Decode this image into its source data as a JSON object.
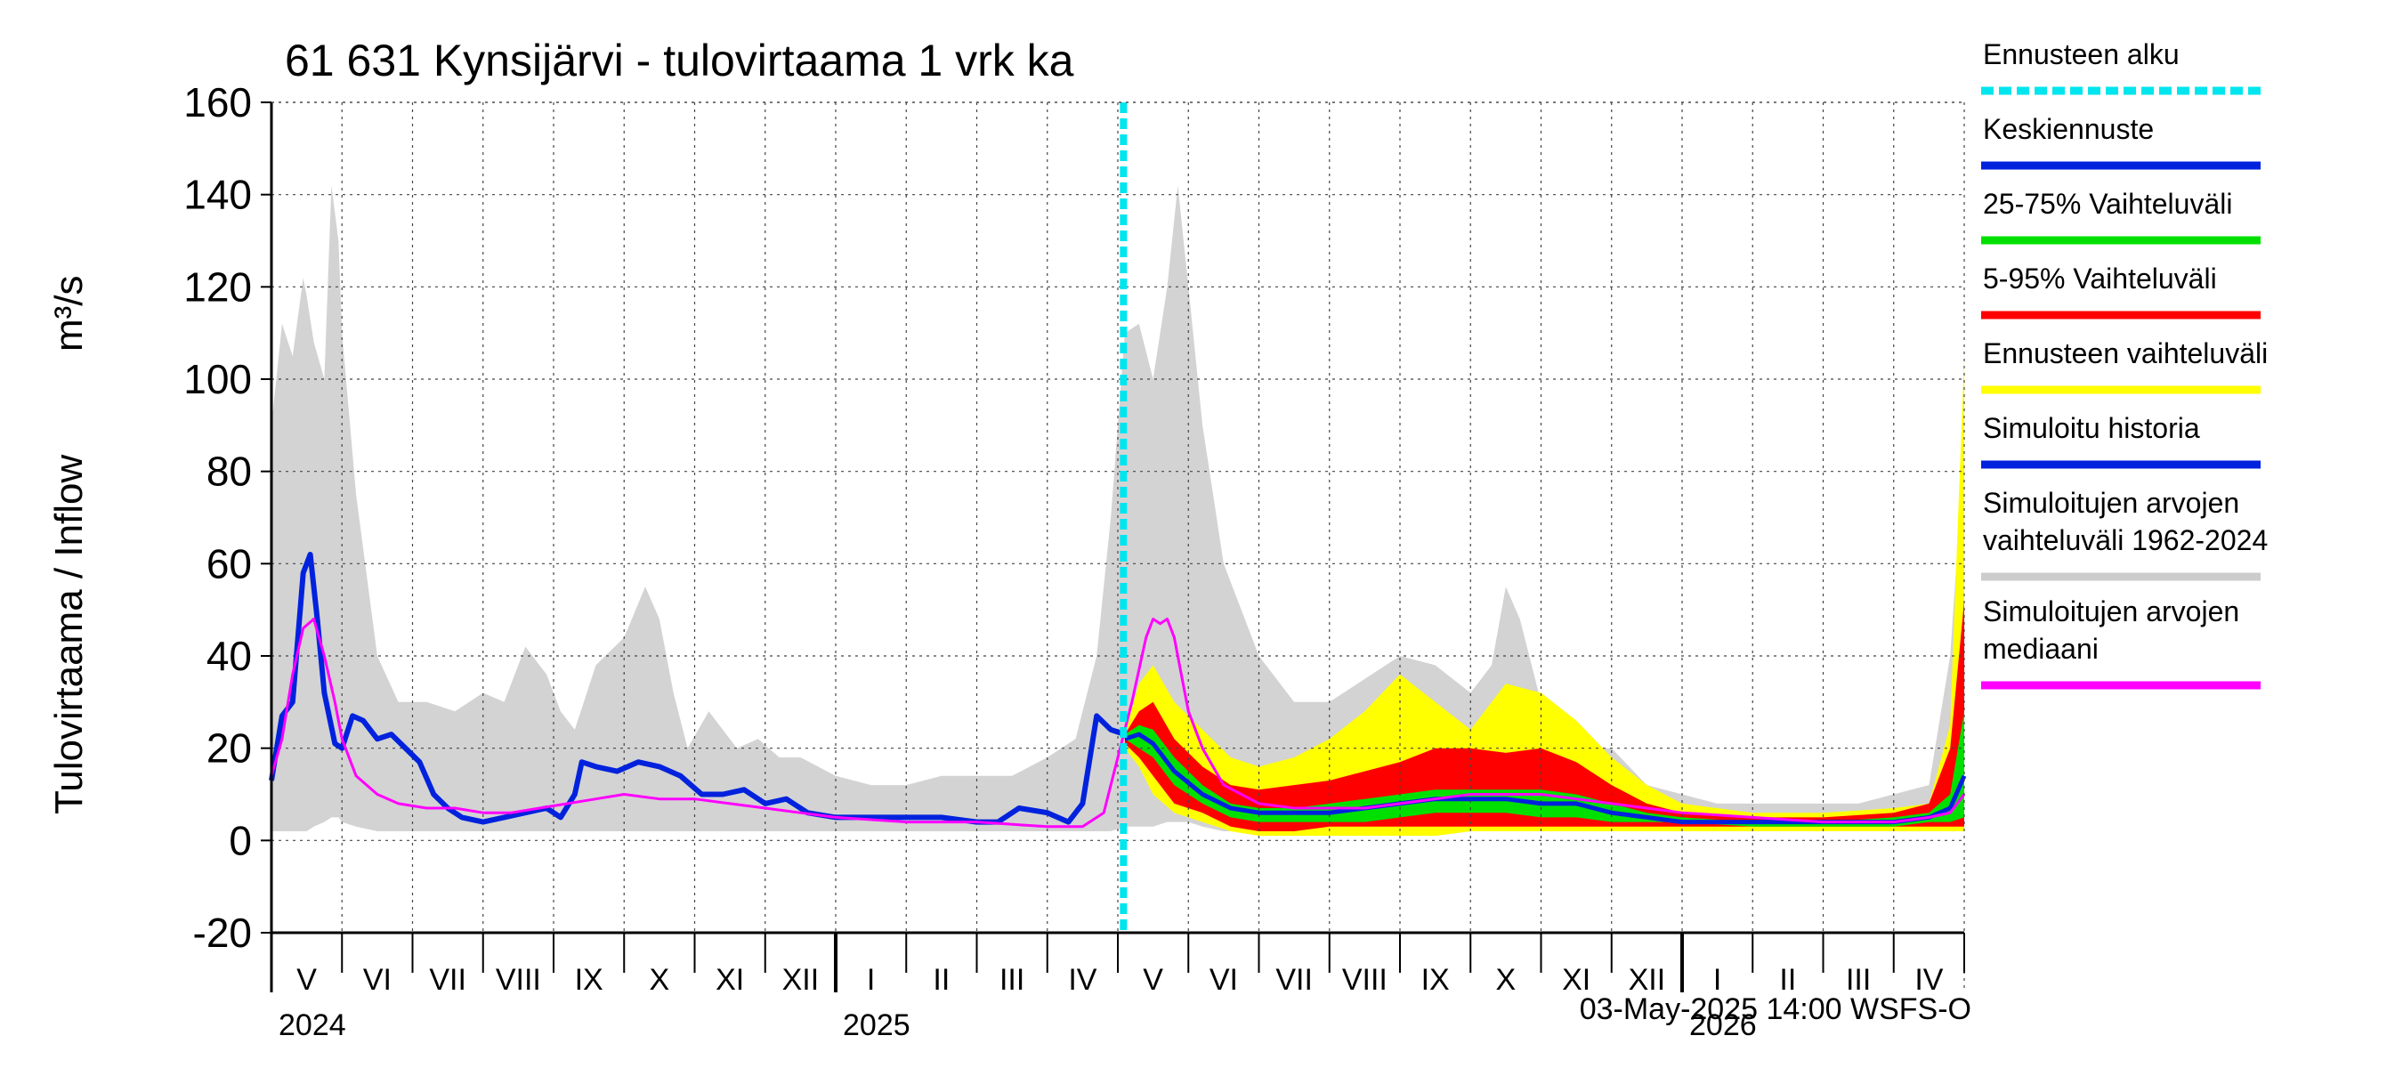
{
  "chart_data": {
    "type": "area",
    "title": "61 631 Kynsijärvi - tulovirtaama 1 vrk ka",
    "ylabel": "Tulovirtaama / Inflow",
    "yunit": "m³/s",
    "ylim": [
      -20,
      160
    ],
    "yticks": [
      -20,
      0,
      20,
      40,
      60,
      80,
      100,
      120,
      140,
      160
    ],
    "x_range_months": [
      0,
      24
    ],
    "x_start_note": "month index 0 = start of May 2024",
    "forecast_start": 12.08,
    "grid": true,
    "month_labels": [
      "V",
      "VI",
      "VII",
      "VIII",
      "IX",
      "X",
      "XI",
      "XII",
      "I",
      "II",
      "III",
      "IV",
      "V",
      "VI",
      "VII",
      "VIII",
      "IX",
      "X",
      "XI",
      "XII",
      "I",
      "II",
      "III",
      "IV"
    ],
    "year_labels": [
      {
        "label": "2024",
        "month": 0
      },
      {
        "label": "2025",
        "month": 8
      },
      {
        "label": "2026",
        "month": 20
      }
    ],
    "footer": "03-May-2025 14:00 WSFS-O",
    "legend": [
      {
        "label": "Ennusteen alku",
        "color": "#00e5ee",
        "style": "dashed"
      },
      {
        "label": "Keskiennuste",
        "color": "#0022dd",
        "style": "line"
      },
      {
        "label": "25-75% Vaihteluväli",
        "color": "#00e000",
        "style": "line"
      },
      {
        "label": "5-95% Vaihteluväli",
        "color": "#ff0000",
        "style": "line"
      },
      {
        "label": "Ennusteen vaihteluväli",
        "color": "#ffff00",
        "style": "line"
      },
      {
        "label": "Simuloitu historia",
        "color": "#0022dd",
        "style": "line"
      },
      {
        "label": "Simuloitujen arvojen",
        "label2": "vaihteluväli 1962-2024",
        "color": "#cccccc",
        "style": "line"
      },
      {
        "label": "Simuloitujen arvojen",
        "label2": "mediaani",
        "color": "#ff00ff",
        "style": "line"
      }
    ],
    "series": [
      {
        "name": "Simuloitujen arvojen vaihteluväli 1962-2024",
        "kind": "band",
        "color": "#d3d3d3",
        "x": [
          0,
          0.15,
          0.3,
          0.45,
          0.5,
          0.6,
          0.75,
          0.85,
          0.95,
          1.0,
          1.2,
          1.5,
          1.8,
          2.2,
          2.6,
          3.0,
          3.3,
          3.6,
          3.9,
          4.1,
          4.3,
          4.6,
          5.0,
          5.3,
          5.5,
          5.7,
          5.9,
          6.2,
          6.6,
          6.9,
          7.2,
          7.5,
          8.0,
          8.5,
          9.0,
          9.5,
          10.0,
          10.5,
          11.0,
          11.4,
          11.7,
          11.9,
          12.1,
          12.3,
          12.5,
          12.7,
          12.85,
          13.0,
          13.2,
          13.5,
          14.0,
          14.5,
          15.0,
          15.5,
          16.0,
          16.5,
          17.0,
          17.3,
          17.5,
          17.7,
          18.0,
          18.5,
          19.0,
          19.5,
          20.0,
          20.5,
          21.0,
          21.5,
          22.0,
          22.5,
          23.0,
          23.5,
          23.8,
          24.0
        ],
        "high": [
          90,
          112,
          105,
          122,
          118,
          108,
          100,
          142,
          130,
          110,
          75,
          40,
          30,
          30,
          28,
          32,
          30,
          42,
          36,
          28,
          24,
          38,
          44,
          55,
          48,
          32,
          20,
          28,
          20,
          22,
          18,
          18,
          14,
          12,
          12,
          14,
          14,
          14,
          18,
          22,
          40,
          70,
          110,
          112,
          100,
          120,
          142,
          120,
          90,
          60,
          40,
          30,
          30,
          35,
          40,
          38,
          32,
          38,
          55,
          48,
          30,
          20,
          20,
          12,
          10,
          8,
          8,
          8,
          8,
          8,
          10,
          12,
          40,
          85
        ],
        "low": [
          2,
          2,
          2,
          2,
          2,
          3,
          4,
          5,
          5,
          4,
          3,
          2,
          2,
          2,
          2,
          2,
          2,
          2,
          2,
          2,
          2,
          2,
          2,
          2,
          2,
          2,
          2,
          2,
          2,
          2,
          2,
          2,
          2,
          2,
          2,
          2,
          2,
          2,
          2,
          2,
          2,
          2,
          3,
          3,
          3,
          4,
          4,
          4,
          3,
          2,
          2,
          2,
          2,
          2,
          2,
          2,
          2,
          2,
          2,
          2,
          2,
          2,
          2,
          2,
          2,
          2,
          2,
          2,
          2,
          2,
          2,
          2,
          2,
          2
        ]
      },
      {
        "name": "Ennusteen vaihteluväli",
        "kind": "band",
        "color": "#ffff00",
        "x": [
          12.1,
          12.3,
          12.5,
          12.8,
          13.2,
          13.6,
          14.0,
          14.5,
          15.0,
          15.5,
          16.0,
          16.5,
          17.0,
          17.5,
          18.0,
          18.5,
          19.0,
          19.5,
          20.0,
          21.0,
          22.0,
          23.0,
          23.5,
          23.8,
          24.0
        ],
        "high": [
          23,
          34,
          38,
          30,
          24,
          18,
          16,
          18,
          22,
          28,
          36,
          30,
          24,
          34,
          32,
          26,
          18,
          12,
          8,
          6,
          6,
          7,
          8,
          25,
          105
        ],
        "low": [
          20,
          16,
          10,
          6,
          4,
          2,
          1,
          1,
          1,
          1,
          1,
          1,
          2,
          2,
          2,
          2,
          2,
          2,
          2,
          2,
          2,
          2,
          2,
          2,
          2
        ]
      },
      {
        "name": "5-95% Vaihteluväli",
        "kind": "band",
        "color": "#ff0000",
        "x": [
          12.1,
          12.3,
          12.5,
          12.8,
          13.2,
          13.6,
          14.0,
          14.5,
          15.0,
          15.5,
          16.0,
          16.5,
          17.0,
          17.5,
          18.0,
          18.5,
          19.0,
          19.5,
          20.0,
          21.0,
          22.0,
          23.0,
          23.5,
          23.8,
          24.0
        ],
        "high": [
          23,
          28,
          30,
          22,
          16,
          12,
          11,
          12,
          13,
          15,
          17,
          20,
          20,
          19,
          20,
          17,
          12,
          8,
          6,
          5,
          5,
          6,
          8,
          20,
          52
        ],
        "low": [
          21,
          18,
          14,
          8,
          6,
          3,
          2,
          2,
          3,
          3,
          3,
          3,
          3,
          3,
          3,
          3,
          3,
          3,
          3,
          3,
          3,
          3,
          3,
          3,
          3
        ]
      },
      {
        "name": "25-75% Vaihteluväli",
        "kind": "band",
        "color": "#00e000",
        "x": [
          12.1,
          12.3,
          12.5,
          12.8,
          13.2,
          13.6,
          14.0,
          14.5,
          15.0,
          15.5,
          16.0,
          16.5,
          17.0,
          17.5,
          18.0,
          18.5,
          19.0,
          19.5,
          20.0,
          21.0,
          22.0,
          23.0,
          23.5,
          23.8,
          24.0
        ],
        "high": [
          23,
          25,
          24,
          18,
          12,
          8,
          7,
          7,
          8,
          9,
          10,
          11,
          11,
          11,
          11,
          10,
          8,
          6,
          5,
          4,
          4,
          5,
          6,
          10,
          28
        ],
        "low": [
          22,
          20,
          18,
          12,
          8,
          5,
          4,
          4,
          4,
          4,
          5,
          6,
          6,
          6,
          5,
          5,
          4,
          4,
          4,
          3,
          3,
          3,
          4,
          4,
          5
        ]
      },
      {
        "name": "Keskiennuste",
        "kind": "line",
        "color": "#0022dd",
        "width": 5,
        "x": [
          12.1,
          12.3,
          12.5,
          12.8,
          13.2,
          13.6,
          14.0,
          14.5,
          15.0,
          15.5,
          16.0,
          16.5,
          17.0,
          17.5,
          18.0,
          18.5,
          19.0,
          19.5,
          20.0,
          21.0,
          22.0,
          23.0,
          23.5,
          23.8,
          24.0
        ],
        "y": [
          22,
          23,
          21,
          15,
          10,
          7,
          6,
          6,
          6,
          7,
          8,
          9,
          9,
          9,
          8,
          8,
          6,
          5,
          4,
          4,
          4,
          4,
          5,
          7,
          14
        ]
      },
      {
        "name": "Simuloitu historia",
        "kind": "line",
        "color": "#0022dd",
        "width": 6,
        "x": [
          0,
          0.15,
          0.3,
          0.45,
          0.55,
          0.65,
          0.75,
          0.9,
          1.0,
          1.15,
          1.3,
          1.5,
          1.7,
          1.9,
          2.1,
          2.3,
          2.5,
          2.7,
          3.0,
          3.3,
          3.6,
          3.9,
          4.1,
          4.3,
          4.4,
          4.6,
          4.9,
          5.2,
          5.5,
          5.8,
          6.1,
          6.4,
          6.7,
          7.0,
          7.3,
          7.6,
          8.0,
          8.5,
          9.0,
          9.5,
          10.0,
          10.3,
          10.6,
          11.0,
          11.3,
          11.5,
          11.7,
          11.9,
          12.1
        ],
        "y": [
          13,
          27,
          30,
          58,
          62,
          48,
          32,
          21,
          20,
          27,
          26,
          22,
          23,
          20,
          17,
          10,
          7,
          5,
          4,
          5,
          6,
          7,
          5,
          10,
          17,
          16,
          15,
          17,
          16,
          14,
          10,
          10,
          11,
          8,
          9,
          6,
          5,
          5,
          5,
          5,
          4,
          4,
          7,
          6,
          4,
          8,
          27,
          24,
          23
        ]
      },
      {
        "name": "Simuloitujen arvojen mediaani",
        "kind": "line",
        "color": "#ff00ff",
        "width": 3,
        "x": [
          0,
          0.15,
          0.3,
          0.45,
          0.6,
          0.75,
          0.9,
          1.0,
          1.2,
          1.5,
          1.8,
          2.2,
          2.6,
          3.0,
          3.4,
          3.8,
          4.2,
          4.6,
          5.0,
          5.5,
          6.0,
          6.5,
          7.0,
          7.5,
          8.0,
          9.0,
          10.0,
          11.0,
          11.5,
          11.8,
          12.0,
          12.2,
          12.4,
          12.5,
          12.6,
          12.7,
          12.8,
          12.9,
          13.0,
          13.2,
          13.5,
          14.0,
          14.5,
          15.0,
          15.5,
          16.0,
          16.5,
          17.0,
          17.5,
          18.0,
          18.5,
          19.0,
          19.5,
          20.0,
          21.0,
          22.0,
          23.0,
          23.5,
          23.8,
          24.0
        ],
        "y": [
          14,
          22,
          36,
          46,
          48,
          40,
          30,
          22,
          14,
          10,
          8,
          7,
          7,
          6,
          6,
          7,
          8,
          9,
          10,
          9,
          9,
          8,
          7,
          6,
          5,
          4,
          4,
          3,
          3,
          6,
          18,
          30,
          44,
          48,
          47,
          48,
          44,
          36,
          28,
          20,
          12,
          8,
          7,
          7,
          7,
          8,
          9,
          10,
          10,
          10,
          9,
          8,
          7,
          6,
          5,
          4,
          4,
          5,
          6,
          10
        ]
      }
    ]
  }
}
